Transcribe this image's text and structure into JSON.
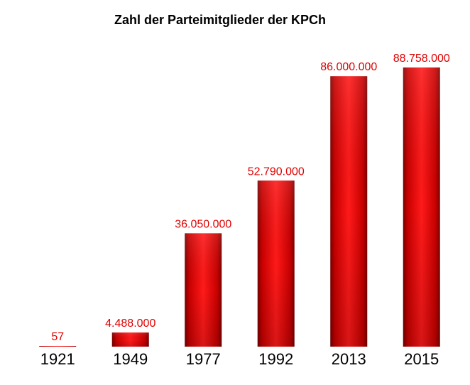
{
  "chart_data": {
    "type": "bar",
    "title": "Zahl der Parteimitglieder der KPCh",
    "categories": [
      "1921",
      "1949",
      "1977",
      "1992",
      "2013",
      "2015"
    ],
    "values": [
      57,
      4488000,
      36050000,
      52790000,
      86000000,
      88758000
    ],
    "value_labels": [
      "57",
      "4.488.000",
      "36.050.000",
      "52.790.000",
      "86.000.000",
      "88.758.000"
    ],
    "ylim": [
      0,
      88758000
    ],
    "grid": false,
    "bar_color": "#e00000",
    "label_color": "#e00000"
  }
}
